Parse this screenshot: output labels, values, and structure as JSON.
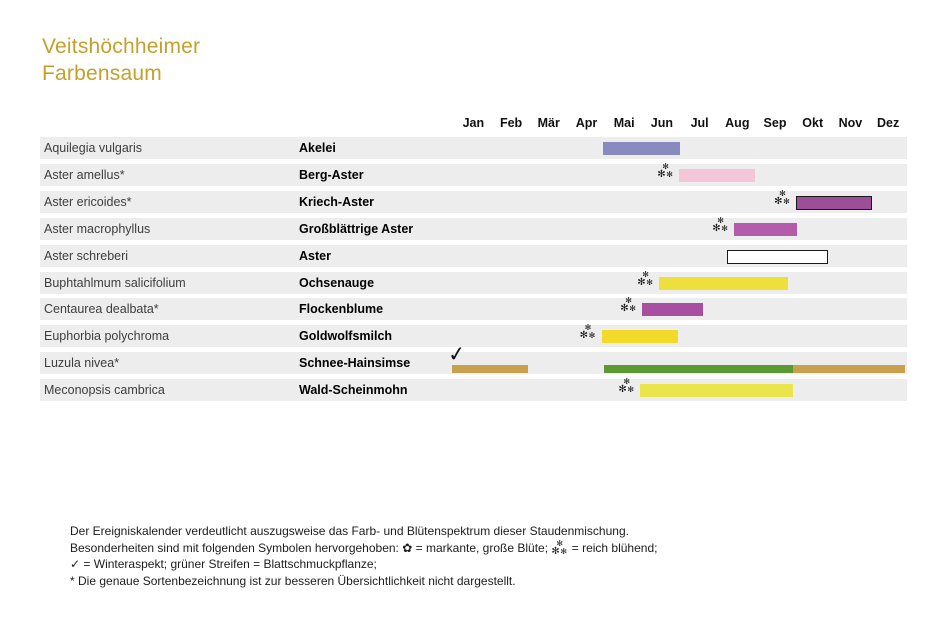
{
  "title": {
    "line1": "Veitshöchheimer",
    "line2": "Farbensaum",
    "color": "#c4a02c"
  },
  "palette": {
    "stripe": "#ededee",
    "latin_text": "#3d3d3d",
    "german_text": "#000000",
    "bar_border": "#1a1a1a",
    "symbol": "#111111"
  },
  "icons": {
    "florette": "✿",
    "check": "✓",
    "asterisk": "✻"
  },
  "chart_data": {
    "type": "bar",
    "subtype": "horizontal-gantt-flowering-calendar",
    "x_axis": "months",
    "months": [
      "Jan",
      "Feb",
      "Mär",
      "Apr",
      "Mai",
      "Jun",
      "Jul",
      "Aug",
      "Sep",
      "Okt",
      "Nov",
      "Dez"
    ],
    "month_range": [
      1,
      13
    ],
    "rows": [
      {
        "latin": "Aquilegia vulgaris",
        "german": "Akelei",
        "symbol": null,
        "bars": [
          {
            "start": 4.95,
            "end": 6.98,
            "color": "#878bbf",
            "border": false,
            "thin": false
          }
        ]
      },
      {
        "latin": "Aster amellus*",
        "german": "Berg-Aster",
        "symbol": "reich-bluehend",
        "bars": [
          {
            "start": 6.96,
            "end": 8.97,
            "color": "#f3c7d8",
            "border": false,
            "thin": false
          }
        ]
      },
      {
        "latin": "Aster ericoides*",
        "german": "Kriech-Aster",
        "symbol": "reich-bluehend",
        "bars": [
          {
            "start": 10.06,
            "end": 12.08,
            "color": "#9c4f97",
            "border": true,
            "thin": false
          }
        ]
      },
      {
        "latin": "Aster macrophyllus",
        "german": "Großblättrige Aster",
        "symbol": "reich-bluehend",
        "bars": [
          {
            "start": 8.42,
            "end": 10.08,
            "color": "#b55bac",
            "border": false,
            "thin": false
          }
        ]
      },
      {
        "latin": "Aster schreberi",
        "german": "Aster",
        "symbol": null,
        "bars": [
          {
            "start": 8.23,
            "end": 10.9,
            "color": "#ffffff",
            "border": true,
            "thin": false
          }
        ]
      },
      {
        "latin": "Buphtahlmum salicifolium",
        "german": "Ochsenauge",
        "symbol": "reich-bluehend",
        "bars": [
          {
            "start": 6.43,
            "end": 9.85,
            "color": "#eee03c",
            "border": false,
            "thin": false
          }
        ]
      },
      {
        "latin": "Centaurea dealbata*",
        "german": "Flockenblume",
        "symbol": "reich-bluehend",
        "bars": [
          {
            "start": 5.98,
            "end": 7.6,
            "color": "#a94fa2",
            "border": false,
            "thin": false
          }
        ]
      },
      {
        "latin": "Euphorbia polychroma",
        "german": "Goldwolfsmilch",
        "symbol": "reich-bluehend",
        "bars": [
          {
            "start": 4.9,
            "end": 6.94,
            "color": "#f2da28",
            "border": false,
            "thin": false
          }
        ]
      },
      {
        "latin": "Luzula nivea*",
        "german": "Schnee-Hainsimse",
        "symbol": "winteraspekt",
        "bars": [
          {
            "start": 0.94,
            "end": 2.95,
            "color": "#c9a04b",
            "border": false,
            "thin": true
          },
          {
            "start": 4.97,
            "end": 9.98,
            "color": "#5b9a33",
            "border": false,
            "thin": true
          },
          {
            "start": 9.98,
            "end": 12.95,
            "color": "#c9a04b",
            "border": false,
            "thin": true
          }
        ]
      },
      {
        "latin": "Meconopsis cambrica",
        "german": "Wald-Scheinmohn",
        "symbol": "reich-bluehend",
        "bars": [
          {
            "start": 5.93,
            "end": 9.98,
            "color": "#eae44d",
            "border": false,
            "thin": false
          }
        ]
      }
    ]
  },
  "footer": {
    "line1": "Der Ereigniskalender verdeutlicht auszugsweise das Farb- und Blütenspektrum dieser Staudenmischung.",
    "legend_intro": "Besonderheiten sind mit folgenden Symbolen hervorgehoben:",
    "bloom_label": "= markante, große Blüte;",
    "reich_label": "= reich blühend;",
    "winter_label": "= Winteraspekt; grüner Streifen = Blattschmuckpflanze;",
    "line4": "* Die genaue Sortenbezeichnung ist zur besseren Übersichtlichkeit nicht dargestellt."
  }
}
